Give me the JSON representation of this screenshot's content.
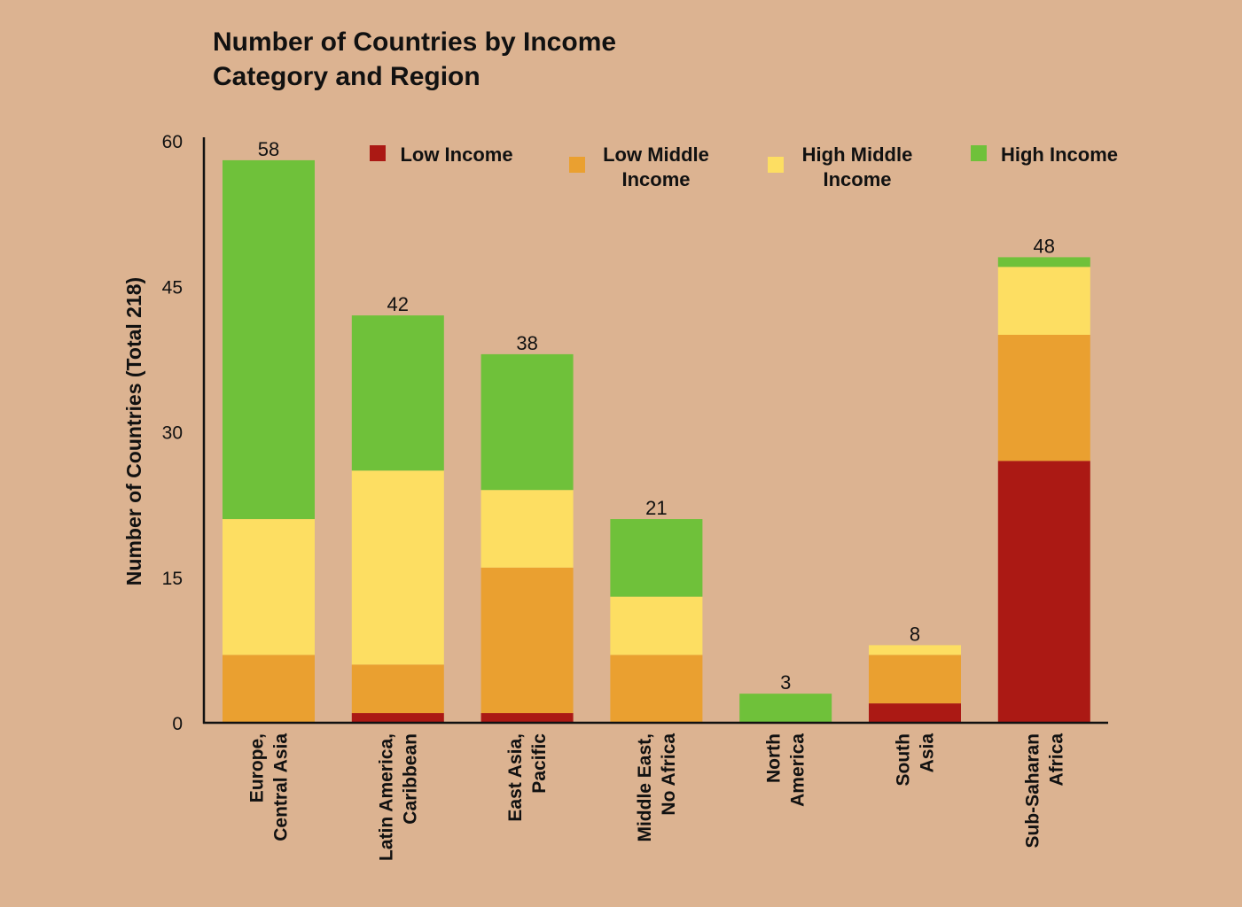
{
  "colors": {
    "background": "#dcb391",
    "low_income": "#ab1914",
    "low_middle_income": "#eaa030",
    "high_middle_income": "#fdde62",
    "high_income": "#6fc13a",
    "axis": "#111111"
  },
  "chart_data": {
    "type": "bar",
    "stacked": true,
    "title": "Number of Countries by Income Category and Region",
    "title_lines": [
      "Number of Countries by Income",
      "Category and Region"
    ],
    "xlabel": "",
    "ylabel": "Number of Countries (Total 218)",
    "ylim": [
      0,
      60
    ],
    "yticks": [
      0,
      15,
      30,
      45,
      60
    ],
    "grid": false,
    "legend_position": "top",
    "categories": [
      "Europe, Central Asia",
      "Latin America, Caribbean",
      "East Asia, Pacific",
      "Middle East, No Africa",
      "North America",
      "South Asia",
      "Sub-Saharan Africa"
    ],
    "category_lines": [
      [
        "Europe,",
        "Central Asia"
      ],
      [
        "Latin America,",
        "Caribbean"
      ],
      [
        "East Asia,",
        "Pacific"
      ],
      [
        "Middle East,",
        "No Africa"
      ],
      [
        "North",
        "America"
      ],
      [
        "South",
        "Asia"
      ],
      [
        "Sub-Saharan",
        "Africa"
      ]
    ],
    "series": [
      {
        "name": "Low Income",
        "name_lines": [
          "Low Income"
        ],
        "color_key": "low_income",
        "values": [
          0,
          1,
          1,
          0,
          0,
          2,
          27
        ]
      },
      {
        "name": "Low Middle Income",
        "name_lines": [
          "Low Middle",
          "Income"
        ],
        "color_key": "low_middle_income",
        "values": [
          7,
          5,
          15,
          7,
          0,
          5,
          13
        ]
      },
      {
        "name": "High Middle Income",
        "name_lines": [
          "High Middle",
          "Income"
        ],
        "color_key": "high_middle_income",
        "values": [
          14,
          20,
          8,
          6,
          0,
          1,
          7
        ]
      },
      {
        "name": "High Income",
        "name_lines": [
          "High Income"
        ],
        "color_key": "high_income",
        "values": [
          37,
          16,
          14,
          8,
          3,
          0,
          1
        ]
      }
    ],
    "totals": [
      58,
      42,
      38,
      21,
      3,
      8,
      48
    ]
  }
}
